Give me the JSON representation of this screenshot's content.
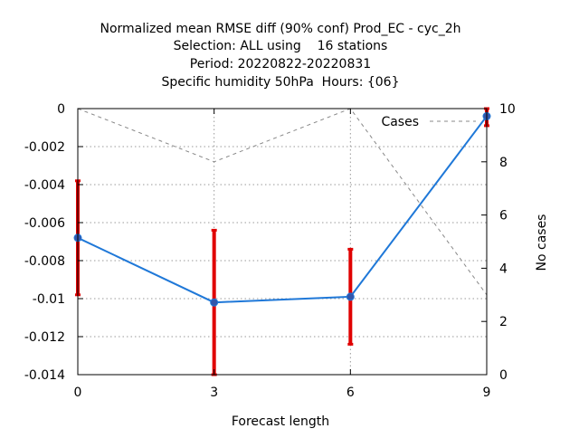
{
  "chart_data": {
    "type": "line",
    "title_lines": [
      "Normalized mean RMSE diff (90% conf) Prod_EC - cyc_2h",
      "Selection: ALL using    16 stations",
      "Period: 20220822-20220831",
      "Specific humidity 50hPa  Hours: {06}"
    ],
    "xlabel": "Forecast length",
    "ylabel": "",
    "y2label": "No cases",
    "x": [
      0,
      3,
      6,
      9
    ],
    "xlim": [
      0,
      9
    ],
    "ylim": [
      -0.014,
      0
    ],
    "y2lim": [
      0,
      10
    ],
    "x_ticks": [
      {
        "value": 0,
        "label": "0"
      },
      {
        "value": 3,
        "label": "3"
      },
      {
        "value": 6,
        "label": "6"
      },
      {
        "value": 9,
        "label": "9"
      }
    ],
    "y_ticks": [
      {
        "value": 0,
        "label": "0"
      },
      {
        "value": -0.002,
        "label": "-0.002"
      },
      {
        "value": -0.004,
        "label": "-0.004"
      },
      {
        "value": -0.006,
        "label": "-0.006"
      },
      {
        "value": -0.008,
        "label": "-0.008"
      },
      {
        "value": -0.01,
        "label": "-0.01"
      },
      {
        "value": -0.012,
        "label": "-0.012"
      },
      {
        "value": -0.014,
        "label": "-0.014"
      }
    ],
    "y2_ticks": [
      {
        "value": 0,
        "label": "0"
      },
      {
        "value": 2,
        "label": "2"
      },
      {
        "value": 4,
        "label": "4"
      },
      {
        "value": 6,
        "label": "6"
      },
      {
        "value": 8,
        "label": "8"
      },
      {
        "value": 10,
        "label": "10"
      }
    ],
    "grid": true,
    "legend_position": "top-right",
    "series": [
      {
        "key": "rmse_diff",
        "axis": "left",
        "color": "#1f78d8",
        "values": [
          -0.0068,
          -0.0102,
          -0.0099,
          -0.0004
        ],
        "ci_low": [
          -0.0098,
          -0.014,
          -0.0124,
          -0.0009
        ],
        "ci_high": [
          -0.0038,
          -0.0064,
          -0.0074,
          0.0
        ],
        "error_color": "#e00000"
      },
      {
        "key": "cases",
        "name": "Cases",
        "axis": "right",
        "color": "#888888",
        "dashed": true,
        "values": [
          10,
          8,
          10,
          3
        ]
      }
    ]
  }
}
